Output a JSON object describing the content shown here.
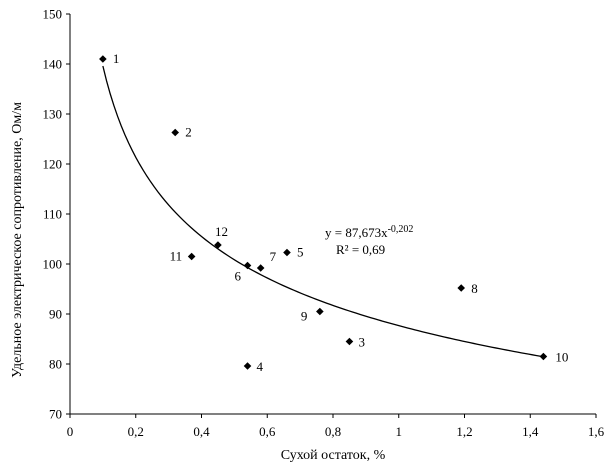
{
  "chart_data": {
    "type": "scatter",
    "title": "",
    "xlabel": "Сухой остаток, %",
    "ylabel": "Удельное электрическое сопротивление, Ом/м",
    "xlim": [
      0,
      1.6
    ],
    "ylim": [
      70,
      150
    ],
    "xticks": [
      "0",
      "0,2",
      "0,4",
      "0,6",
      "0,8",
      "1",
      "1,2",
      "1,4",
      "1,6"
    ],
    "xtick_values": [
      0,
      0.2,
      0.4,
      0.6,
      0.8,
      1.0,
      1.2,
      1.4,
      1.6
    ],
    "yticks": [
      "70",
      "80",
      "90",
      "100",
      "110",
      "120",
      "130",
      "140",
      "150"
    ],
    "ytick_values": [
      70,
      80,
      90,
      100,
      110,
      120,
      130,
      140,
      150
    ],
    "grid": false,
    "points": [
      {
        "label": "1",
        "x": 0.1,
        "y": 141.0
      },
      {
        "label": "2",
        "x": 0.32,
        "y": 126.3
      },
      {
        "label": "3",
        "x": 0.85,
        "y": 84.5
      },
      {
        "label": "4",
        "x": 0.54,
        "y": 79.6
      },
      {
        "label": "5",
        "x": 0.66,
        "y": 102.3
      },
      {
        "label": "6",
        "x": 0.54,
        "y": 99.7
      },
      {
        "label": "7",
        "x": 0.58,
        "y": 99.2
      },
      {
        "label": "8",
        "x": 1.19,
        "y": 95.2
      },
      {
        "label": "9",
        "x": 0.76,
        "y": 90.5
      },
      {
        "label": "10",
        "x": 1.44,
        "y": 81.5
      },
      {
        "label": "11",
        "x": 0.37,
        "y": 101.5
      },
      {
        "label": "12",
        "x": 0.45,
        "y": 103.8
      }
    ],
    "trendline": {
      "type": "power",
      "a": 87.673,
      "b": -0.202,
      "x_range": [
        0.1,
        1.44
      ],
      "equation_prefix": "y = 87,673x",
      "equation_exponent": "-0,202",
      "r_squared_text": "R² = 0,69"
    }
  }
}
